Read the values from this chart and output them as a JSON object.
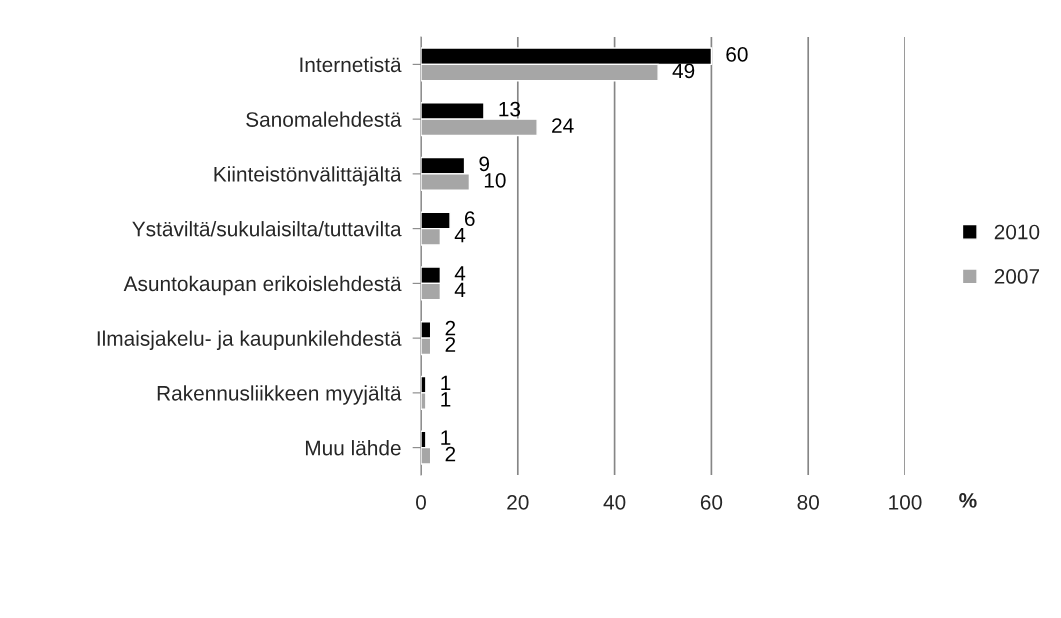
{
  "chart_data": {
    "type": "bar",
    "orientation": "horizontal",
    "xlabel": "%",
    "categories": [
      "Internetistä",
      "Sanomalehdestä",
      "Kiinteistönvälittäjältä",
      "Ystäviltä/sukulaisilta/tuttavilta",
      "Asuntokaupan erikoislehdestä",
      "Ilmaisjakelu- ja kaupunkilehdestä",
      "Rakennusliikkeen myyjältä",
      "Muu lähde"
    ],
    "series": [
      {
        "name": "2010",
        "color": "#000000",
        "values": [
          60,
          13,
          9,
          6,
          4,
          2,
          1,
          1
        ]
      },
      {
        "name": "2007",
        "color": "#a6a6a6",
        "values": [
          49,
          24,
          10,
          4,
          4,
          2,
          1,
          2
        ]
      }
    ],
    "xlim": [
      0,
      100
    ],
    "xticks": [
      0,
      20,
      40,
      60,
      80,
      100
    ],
    "grid": "x",
    "legend": "right",
    "data_labels": true
  }
}
